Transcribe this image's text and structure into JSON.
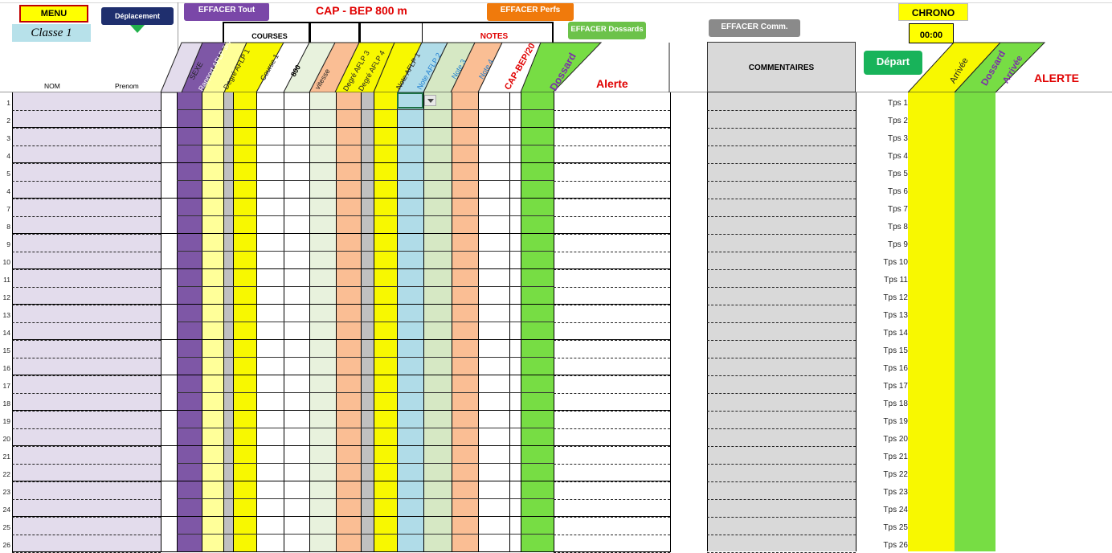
{
  "menu": {
    "label": "MENU"
  },
  "class_label": "Classe  1",
  "nav_button": {
    "label": "Déplacement"
  },
  "buttons": {
    "clear_all": "EFFACER Tout",
    "clear_perfs": "EFFACER Perfs",
    "clear_bibs": "EFFACER Dossards",
    "clear_comments": "EFFACER Comm.",
    "start": "Départ"
  },
  "title": "CAP - BEP  800 m",
  "section_courses": "COURSES",
  "section_notes": "NOTES",
  "chrono": {
    "label": "CHRONO",
    "time": "00:00"
  },
  "headers": {
    "nom": "NOM",
    "prenom": "Prenom",
    "sexe": "SEXE",
    "rapport": "Rapport AFLP 3/4",
    "degre1": "Degré AFLP 1",
    "course1": "Course 1",
    "dist": "800",
    "vitesse": "vitesse",
    "degre3": "Degré AFLP 3",
    "degre4": "Degré AFLP 4",
    "note1": "Note AFLP 1",
    "note2": "Note AFLP 2",
    "note3": "Note 3",
    "note4": "Note 4",
    "capbep": "CAP-BEP/20",
    "dossard": "Dossard",
    "alerte": "Alerte",
    "commentaires": "COMMENTAIRES",
    "arrivee1": "Arrivée",
    "dossard2": "Dossard",
    "arrivee2": "Arrivée",
    "alerte2": "ALERTE"
  },
  "row_numbers": [
    "1",
    "2",
    "3",
    "4",
    "5",
    "4",
    "7",
    "8",
    "9",
    "10",
    "11",
    "12",
    "13",
    "14",
    "15",
    "16",
    "17",
    "18",
    "19",
    "20",
    "21",
    "22",
    "23",
    "24",
    "25",
    "26"
  ],
  "tps_labels": [
    "Tps 1",
    "Tps 2",
    "Tps 3",
    "Tps 4",
    "Tps 5",
    "Tps 6",
    "Tps 7",
    "Tps 8",
    "Tps 9",
    "Tps 10",
    "Tps 11",
    "Tps 12",
    "Tps 13",
    "Tps 14",
    "Tps 15",
    "Tps 16",
    "Tps 17",
    "Tps 18",
    "Tps 19",
    "Tps 20",
    "Tps 21",
    "Tps 22",
    "Tps 23",
    "Tps 24",
    "Tps 25",
    "Tps 26"
  ],
  "colors": {
    "purple": "#7e57a6",
    "yellow": "#f8f800",
    "lightyellow": "#ffff99",
    "green": "#77dd44",
    "orange": "#fabe94",
    "lightgreen": "#d6e8c4",
    "paleGreen": "#e8f2dd",
    "blue": "#b0dce8",
    "gray": "#c0c0c0",
    "lavender": "#e3dcec"
  }
}
